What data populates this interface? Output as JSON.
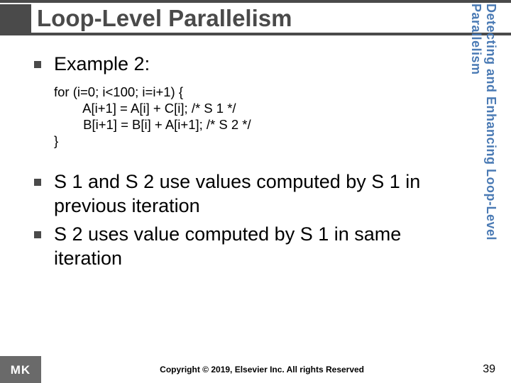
{
  "title": "Loop-Level Parallelism",
  "sidebar": "Detecting and Enhancing Loop-Level Parallelism",
  "example": {
    "heading": "Example 2:",
    "code": [
      "for (i=0; i<100; i=i+1) {",
      "        A[i+1] = A[i] + C[i]; /* S 1 */",
      "        B[i+1] = B[i] + A[i+1]; /* S 2 */",
      "}"
    ]
  },
  "points": [
    "S 1 and S 2 use values computed by S 1 in previous iteration",
    "S 2 uses value computed by S 1 in same iteration"
  ],
  "footer": {
    "logo": "MK",
    "copyright": "Copyright © 2019, Elsevier Inc. All rights Reserved",
    "page": "39"
  },
  "colors": {
    "title": "#4a4a4a",
    "sidebar": "#4a7ab4",
    "bullet": "#4a4a4a",
    "logo_bg": "#6a6a6a",
    "background": "#ffffff"
  }
}
